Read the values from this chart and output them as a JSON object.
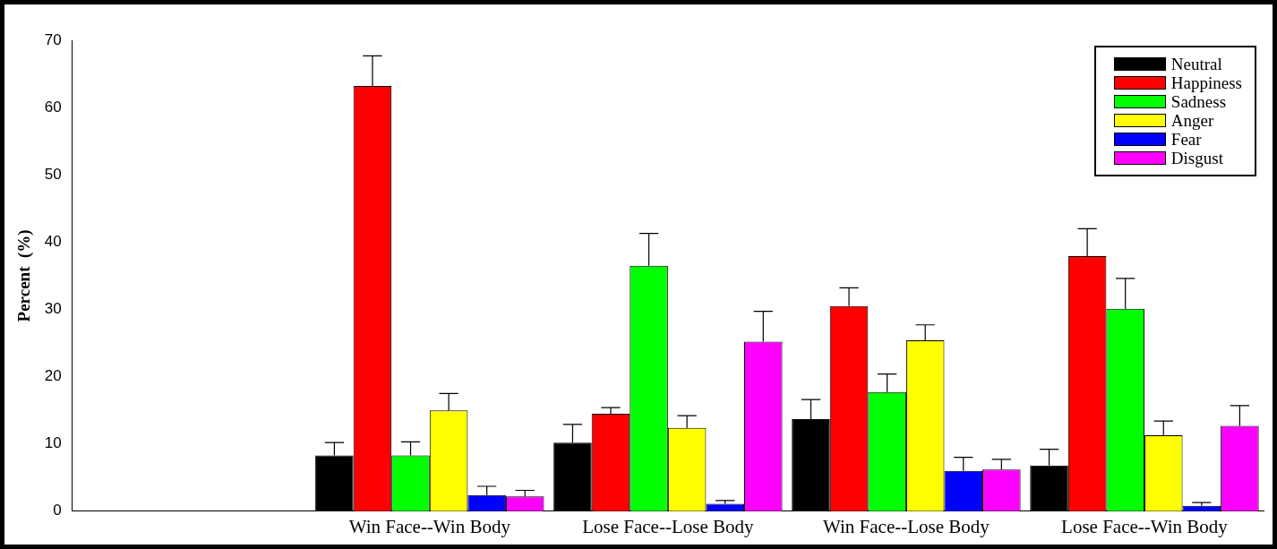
{
  "chart_data": {
    "type": "bar",
    "ylabel": "Percent  (%)",
    "categories": [
      null,
      "Win Face--Win Body",
      "Lose Face--Lose Body",
      "Win Face--Lose Body",
      "Lose Face--Win Body"
    ],
    "ylim": [
      0,
      70
    ],
    "yticks": [
      0,
      10,
      20,
      30,
      40,
      50,
      60,
      70
    ],
    "grid": false,
    "legend": "top right",
    "series": [
      {
        "name": "Neutral",
        "color": "#000000",
        "values": [
          null,
          8.3,
          10.2,
          13.7,
          6.8
        ],
        "errors": [
          null,
          [
            8.3,
            10.2
          ],
          [
            10.2,
            12.9
          ],
          [
            13.7,
            16.6
          ],
          [
            6.8,
            9.2
          ]
        ]
      },
      {
        "name": "Happiness",
        "color": "#ff0000",
        "values": [
          null,
          63.2,
          14.5,
          30.5,
          37.9
        ],
        "errors": [
          null,
          [
            63.2,
            67.7
          ],
          [
            14.5,
            15.4
          ],
          [
            30.5,
            33.2
          ],
          [
            37.9,
            42
          ]
        ]
      },
      {
        "name": "Sadness",
        "color": "#00ff00",
        "values": [
          null,
          8.3,
          36.5,
          17.7,
          30.1
        ],
        "errors": [
          null,
          [
            8.3,
            10.3
          ],
          [
            36.5,
            41.3
          ],
          [
            17.7,
            20.4
          ],
          [
            30.1,
            34.6
          ]
        ]
      },
      {
        "name": "Anger",
        "color": "#ffff00",
        "values": [
          null,
          15,
          12.4,
          25.4,
          11.3
        ],
        "errors": [
          null,
          [
            15,
            17.5
          ],
          [
            12.4,
            14.2
          ],
          [
            25.4,
            27.7
          ],
          [
            11.3,
            13.4
          ]
        ]
      },
      {
        "name": "Fear",
        "color": "#0000ff",
        "values": [
          null,
          2.4,
          1.1,
          6,
          0.8
        ],
        "errors": [
          null,
          [
            2.4,
            3.7
          ],
          [
            1.1,
            1.6
          ],
          [
            6,
            8
          ],
          [
            0.8,
            1.3
          ]
        ]
      },
      {
        "name": "Disgust",
        "color": "#ff00ff",
        "values": [
          null,
          2.2,
          25.2,
          6.2,
          12.7
        ],
        "errors": [
          null,
          [
            2.2,
            3.1
          ],
          [
            25.2,
            29.7
          ],
          [
            6.2,
            7.7
          ],
          [
            12.7,
            15.7
          ]
        ]
      }
    ]
  }
}
